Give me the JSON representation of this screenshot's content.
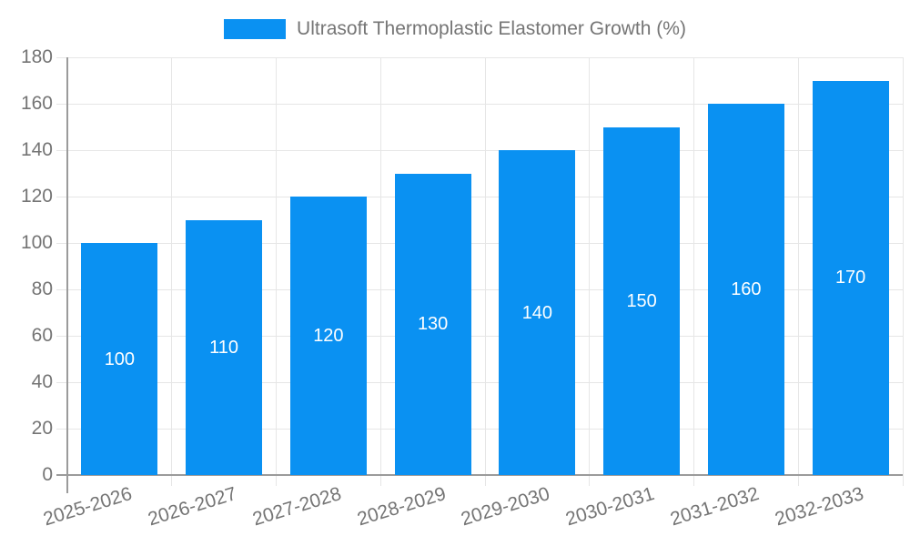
{
  "legend": {
    "label": "Ultrasoft Thermoplastic Elastomer Growth (%)"
  },
  "chart_data": {
    "type": "bar",
    "title": "Ultrasoft Thermoplastic Elastomer Growth (%)",
    "categories": [
      "2025-2026",
      "2026-2027",
      "2027-2028",
      "2028-2029",
      "2029-2030",
      "2030-2031",
      "2031-2032",
      "2032-2033"
    ],
    "values": [
      100,
      110,
      120,
      130,
      140,
      150,
      160,
      170
    ],
    "data_labels": [
      "100",
      "110",
      "120",
      "130",
      "140",
      "150",
      "160",
      "170"
    ],
    "xlabel": "",
    "ylabel": "",
    "ylim": [
      0,
      180
    ],
    "y_ticks": [
      0,
      20,
      40,
      60,
      80,
      100,
      120,
      140,
      160,
      180
    ],
    "grid": true,
    "legend_position": "top",
    "colors": {
      "bar": "#0a91f2",
      "grid": "#e6e6e6",
      "axis": "#9b9b9b",
      "text": "#757575",
      "data_label": "#ffffff",
      "background": "#ffffff"
    }
  }
}
